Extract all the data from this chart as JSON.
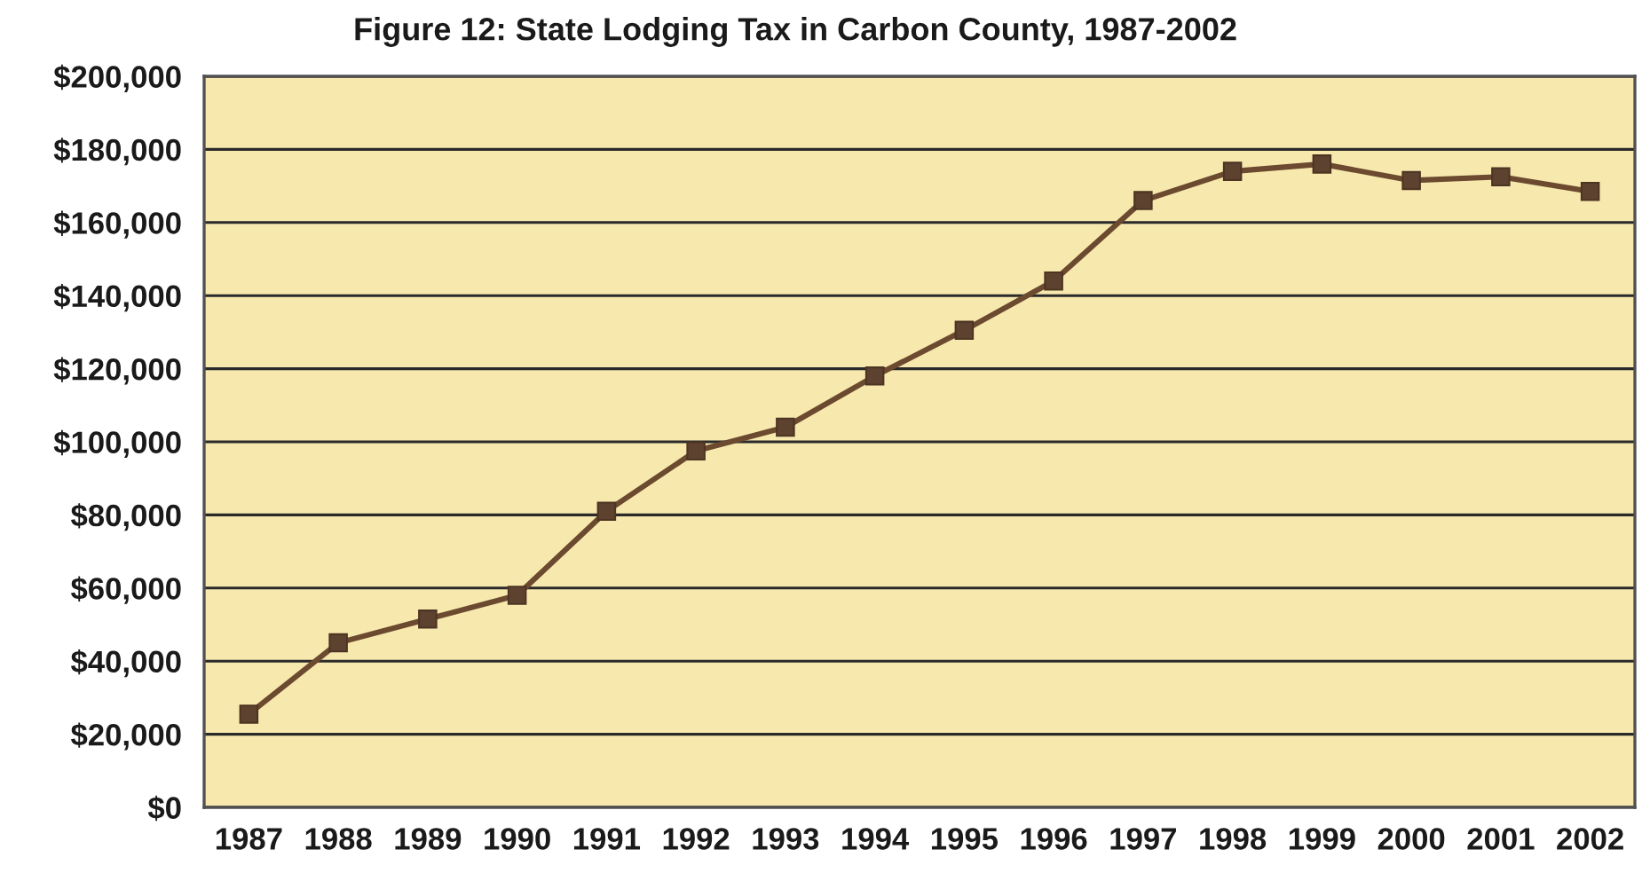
{
  "chart_data": {
    "type": "line",
    "title": "Figure 12: State Lodging Tax in Carbon County, 1987-2002",
    "categories": [
      "1987",
      "1988",
      "1989",
      "1990",
      "1991",
      "1992",
      "1993",
      "1994",
      "1995",
      "1996",
      "1997",
      "1998",
      "1999",
      "2000",
      "2001",
      "2002"
    ],
    "series": [
      {
        "color": "#6b4a30",
        "values": [
          25500,
          45000,
          51500,
          58000,
          81000,
          97500,
          104000,
          118000,
          130500,
          144000,
          166000,
          174000,
          176000,
          171500,
          172500,
          168500
        ]
      }
    ],
    "ylim": [
      0,
      200000
    ],
    "yticks": [
      {
        "value": 0,
        "label": "$0"
      },
      {
        "value": 20000,
        "label": "$20,000"
      },
      {
        "value": 40000,
        "label": "$40,000"
      },
      {
        "value": 60000,
        "label": "$60,000"
      },
      {
        "value": 80000,
        "label": "$80,000"
      },
      {
        "value": 100000,
        "label": "$100,000"
      },
      {
        "value": 120000,
        "label": "$120,000"
      },
      {
        "value": 140000,
        "label": "$140,000"
      },
      {
        "value": 160000,
        "label": "$160,000"
      },
      {
        "value": 180000,
        "label": "$180,000"
      },
      {
        "value": 200000,
        "label": "$200,000"
      }
    ],
    "grid": "y",
    "marker": "square",
    "line_style": "solid",
    "legend": false
  }
}
